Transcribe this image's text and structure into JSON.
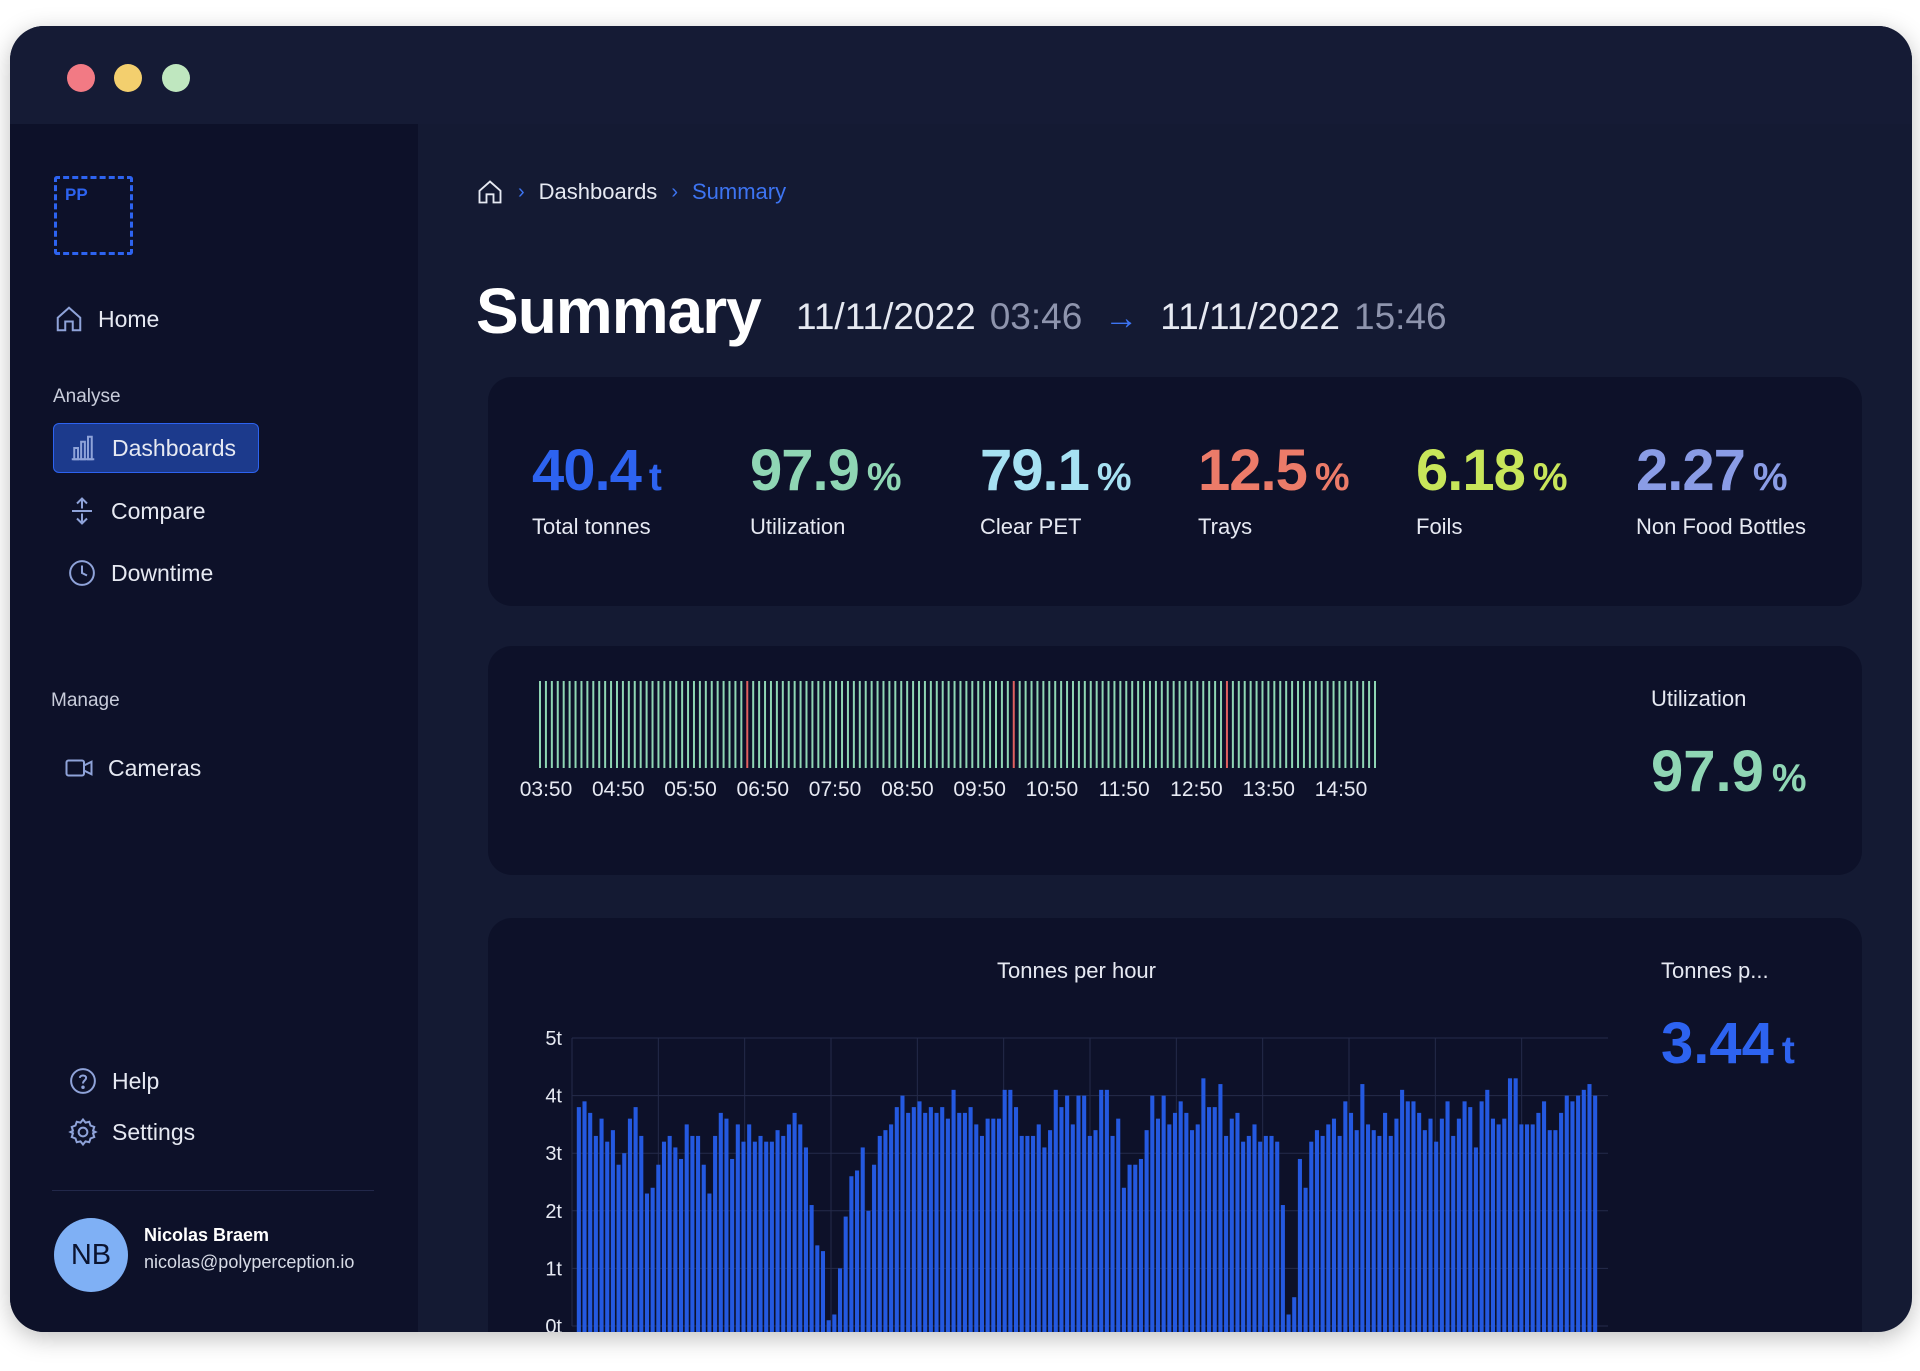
{
  "colors": {
    "accent": "#2d63f0",
    "traffic_red": "#f27a84",
    "traffic_yellow": "#f3cf6e",
    "traffic_green": "#bfe7bf",
    "ok_tick": "#8fd6b4",
    "down_tick": "#e0605f",
    "bar_blue": "#2459e0"
  },
  "window_controls": [
    "close",
    "minimize",
    "maximize"
  ],
  "logo": {
    "text": "PP"
  },
  "sidebar": {
    "home": {
      "label": "Home",
      "icon": "home-icon"
    },
    "sections": [
      {
        "label": "Analyse",
        "items": [
          {
            "label": "Dashboards",
            "icon": "bar-chart-icon",
            "active": true
          },
          {
            "label": "Compare",
            "icon": "compare-arrows-icon",
            "active": false
          },
          {
            "label": "Downtime",
            "icon": "clock-icon",
            "active": false
          }
        ]
      },
      {
        "label": "Manage",
        "items": [
          {
            "label": "Cameras",
            "icon": "camera-icon",
            "active": false
          }
        ]
      }
    ],
    "footer_items": [
      {
        "label": "Help",
        "icon": "help-circle-icon"
      },
      {
        "label": "Settings",
        "icon": "gear-icon"
      }
    ],
    "user": {
      "initials": "NB",
      "name": "Nicolas Braem",
      "email": "nicolas@polyperception.io"
    }
  },
  "breadcrumb": {
    "crumbs": [
      "Dashboards"
    ],
    "current": "Summary"
  },
  "header": {
    "title": "Summary",
    "start_date": "11/11/2022",
    "start_time": "03:46",
    "end_date": "11/11/2022",
    "end_time": "15:46"
  },
  "kpis": [
    {
      "value": "40.4",
      "unit": "t",
      "label": "Total tonnes",
      "color": "#2d63f0"
    },
    {
      "value": "97.9",
      "unit": "%",
      "label": "Utilization",
      "color": "#8fd6b4"
    },
    {
      "value": "79.1",
      "unit": "%",
      "label": "Clear PET",
      "color": "#a6e1f2"
    },
    {
      "value": "12.5",
      "unit": "%",
      "label": "Trays",
      "color": "#ec7b69"
    },
    {
      "value": "6.18",
      "unit": "%",
      "label": "Foils",
      "color": "#c8e65a"
    },
    {
      "value": "2.27",
      "unit": "%",
      "label": "Non Food Bottles",
      "color": "#8a9ce6"
    }
  ],
  "utilization": {
    "label": "Utilization",
    "value": "97.9",
    "unit": "%",
    "color": "#8fd6b4"
  },
  "tonnes_side": {
    "label": "Tonnes p...",
    "value": "3.44",
    "unit": "t",
    "color": "#2d63f0"
  },
  "chart_data": [
    {
      "type": "bar",
      "x_tick_labels": [
        "03:50",
        "04:50",
        "05:50",
        "06:50",
        "07:50",
        "08:50",
        "09:50",
        "10:50",
        "11:50",
        "12:50",
        "13:50",
        "14:50"
      ],
      "tick_count": 142,
      "downtime_tick_indices": [
        35,
        80,
        116
      ]
    },
    {
      "type": "bar",
      "title": "Tonnes per hour",
      "y_tick_labels": [
        "0t",
        "1t",
        "2t",
        "3t",
        "4t",
        "5t"
      ],
      "ylim": [
        0,
        5
      ],
      "grid": true,
      "values": [
        3.8,
        3.9,
        3.7,
        3.3,
        3.6,
        3.2,
        3.4,
        2.8,
        3.0,
        3.6,
        3.8,
        3.3,
        2.3,
        2.4,
        2.8,
        3.2,
        3.3,
        3.1,
        2.9,
        3.5,
        3.3,
        3.3,
        2.8,
        2.3,
        3.3,
        3.7,
        3.6,
        2.9,
        3.5,
        3.2,
        3.5,
        3.2,
        3.3,
        3.2,
        3.2,
        3.4,
        3.3,
        3.5,
        3.7,
        3.5,
        3.1,
        2.1,
        1.4,
        1.3,
        0.1,
        0.2,
        1.0,
        1.9,
        2.6,
        2.7,
        3.1,
        2.0,
        2.8,
        3.3,
        3.4,
        3.5,
        3.8,
        4.0,
        3.7,
        3.8,
        3.9,
        3.7,
        3.8,
        3.7,
        3.8,
        3.6,
        4.1,
        3.7,
        3.7,
        3.8,
        3.5,
        3.3,
        3.6,
        3.6,
        3.6,
        4.1,
        4.1,
        3.8,
        3.3,
        3.3,
        3.3,
        3.5,
        3.1,
        3.4,
        4.1,
        3.8,
        4.0,
        3.5,
        4.0,
        4.0,
        3.3,
        3.4,
        4.1,
        4.1,
        3.3,
        3.6,
        2.4,
        2.8,
        2.8,
        2.9,
        3.4,
        4.0,
        3.6,
        4.0,
        3.5,
        3.7,
        3.9,
        3.7,
        3.4,
        3.5,
        4.3,
        3.8,
        3.8,
        4.2,
        3.3,
        3.6,
        3.7,
        3.2,
        3.3,
        3.5,
        3.2,
        3.3,
        3.3,
        3.2,
        2.1,
        0.2,
        0.5,
        2.9,
        2.4,
        3.2,
        3.4,
        3.3,
        3.5,
        3.6,
        3.3,
        3.9,
        3.7,
        3.4,
        4.2,
        3.5,
        3.4,
        3.3,
        3.7,
        3.3,
        3.6,
        4.1,
        3.9,
        3.9,
        3.7,
        3.4,
        3.6,
        3.2,
        3.6,
        3.9,
        3.3,
        3.6,
        3.9,
        3.8,
        3.1,
        3.9,
        4.1,
        3.6,
        3.5,
        3.6,
        4.3,
        4.3,
        3.5,
        3.5,
        3.5,
        3.7,
        3.9,
        3.4,
        3.4,
        3.7,
        4.0,
        3.9,
        4.0,
        4.1,
        4.2,
        4.0
      ]
    }
  ]
}
